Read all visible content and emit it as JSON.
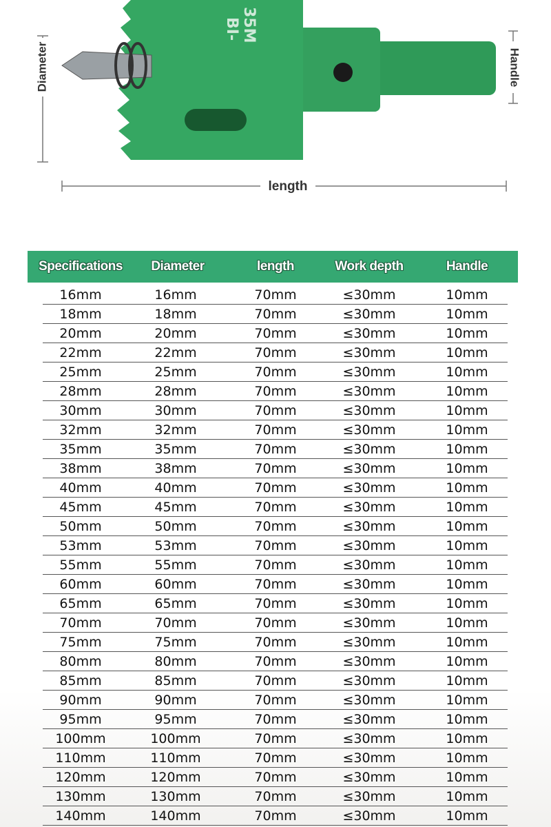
{
  "product_image": {
    "dimension_labels": {
      "diameter": "Diameter",
      "handle": "Handle",
      "length": "length"
    },
    "bit_markings": [
      "BI-",
      "35M"
    ]
  },
  "table": {
    "headers": [
      "Specifications",
      "Diameter",
      "length",
      "Work depth",
      "Handle"
    ],
    "rows": [
      [
        "16mm",
        "16mm",
        "70mm",
        "≤30mm",
        "10mm"
      ],
      [
        "18mm",
        "18mm",
        "70mm",
        "≤30mm",
        "10mm"
      ],
      [
        "20mm",
        "20mm",
        "70mm",
        "≤30mm",
        "10mm"
      ],
      [
        "22mm",
        "22mm",
        "70mm",
        "≤30mm",
        "10mm"
      ],
      [
        "25mm",
        "25mm",
        "70mm",
        "≤30mm",
        "10mm"
      ],
      [
        "28mm",
        "28mm",
        "70mm",
        "≤30mm",
        "10mm"
      ],
      [
        "30mm",
        "30mm",
        "70mm",
        "≤30mm",
        "10mm"
      ],
      [
        "32mm",
        "32mm",
        "70mm",
        "≤30mm",
        "10mm"
      ],
      [
        "35mm",
        "35mm",
        "70mm",
        "≤30mm",
        "10mm"
      ],
      [
        "38mm",
        "38mm",
        "70mm",
        "≤30mm",
        "10mm"
      ],
      [
        "40mm",
        "40mm",
        "70mm",
        "≤30mm",
        "10mm"
      ],
      [
        "45mm",
        "45mm",
        "70mm",
        "≤30mm",
        "10mm"
      ],
      [
        "50mm",
        "50mm",
        "70mm",
        "≤30mm",
        "10mm"
      ],
      [
        "53mm",
        "53mm",
        "70mm",
        "≤30mm",
        "10mm"
      ],
      [
        "55mm",
        "55mm",
        "70mm",
        "≤30mm",
        "10mm"
      ],
      [
        "60mm",
        "60mm",
        "70mm",
        "≤30mm",
        "10mm"
      ],
      [
        "65mm",
        "65mm",
        "70mm",
        "≤30mm",
        "10mm"
      ],
      [
        "70mm",
        "70mm",
        "70mm",
        "≤30mm",
        "10mm"
      ],
      [
        "75mm",
        "75mm",
        "70mm",
        "≤30mm",
        "10mm"
      ],
      [
        "80mm",
        "80mm",
        "70mm",
        "≤30mm",
        "10mm"
      ],
      [
        "85mm",
        "85mm",
        "70mm",
        "≤30mm",
        "10mm"
      ],
      [
        "90mm",
        "90mm",
        "70mm",
        "≤30mm",
        "10mm"
      ],
      [
        "95mm",
        "95mm",
        "70mm",
        "≤30mm",
        "10mm"
      ],
      [
        "100mm",
        "100mm",
        "70mm",
        "≤30mm",
        "10mm"
      ],
      [
        "110mm",
        "110mm",
        "70mm",
        "≤30mm",
        "10mm"
      ],
      [
        "120mm",
        "120mm",
        "70mm",
        "≤30mm",
        "10mm"
      ],
      [
        "130mm",
        "130mm",
        "70mm",
        "≤30mm",
        "10mm"
      ],
      [
        "140mm",
        "140mm",
        "70mm",
        "≤30mm",
        "10mm"
      ]
    ]
  }
}
